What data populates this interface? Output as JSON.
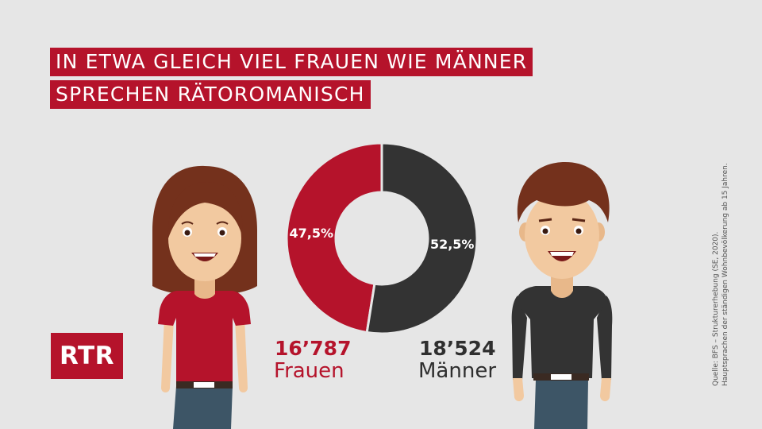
{
  "title": {
    "line1": "IN ETWA GLEICH VIEL FRAUEN WIE MÄNNER",
    "line2": "SPRECHEN RÄTOROMANISCH"
  },
  "logo": {
    "text": "RTR"
  },
  "colors": {
    "accent": "#b5132b",
    "dark": "#333333",
    "background": "#e6e6e6"
  },
  "chart_data": {
    "type": "pie",
    "variant": "donut",
    "categories": [
      "Frauen",
      "Männer"
    ],
    "values": [
      47.5,
      52.5
    ],
    "value_labels": [
      "47,5%",
      "52,5%"
    ],
    "counts": [
      "16’787",
      "18’524"
    ],
    "colors": [
      "#b5132b",
      "#333333"
    ]
  },
  "stats": {
    "women": {
      "count": "16’787",
      "label": "Frauen"
    },
    "men": {
      "count": "18’524",
      "label": "Männer"
    }
  },
  "source": {
    "line1": "Quelle: BFS – Strukturerhebung (SE, 2020).",
    "line2": "Hauptsprachen der ständigen Wohnbevölkerung ab 15 Jahren."
  },
  "illustrations": [
    "woman-illustration",
    "man-illustration"
  ]
}
